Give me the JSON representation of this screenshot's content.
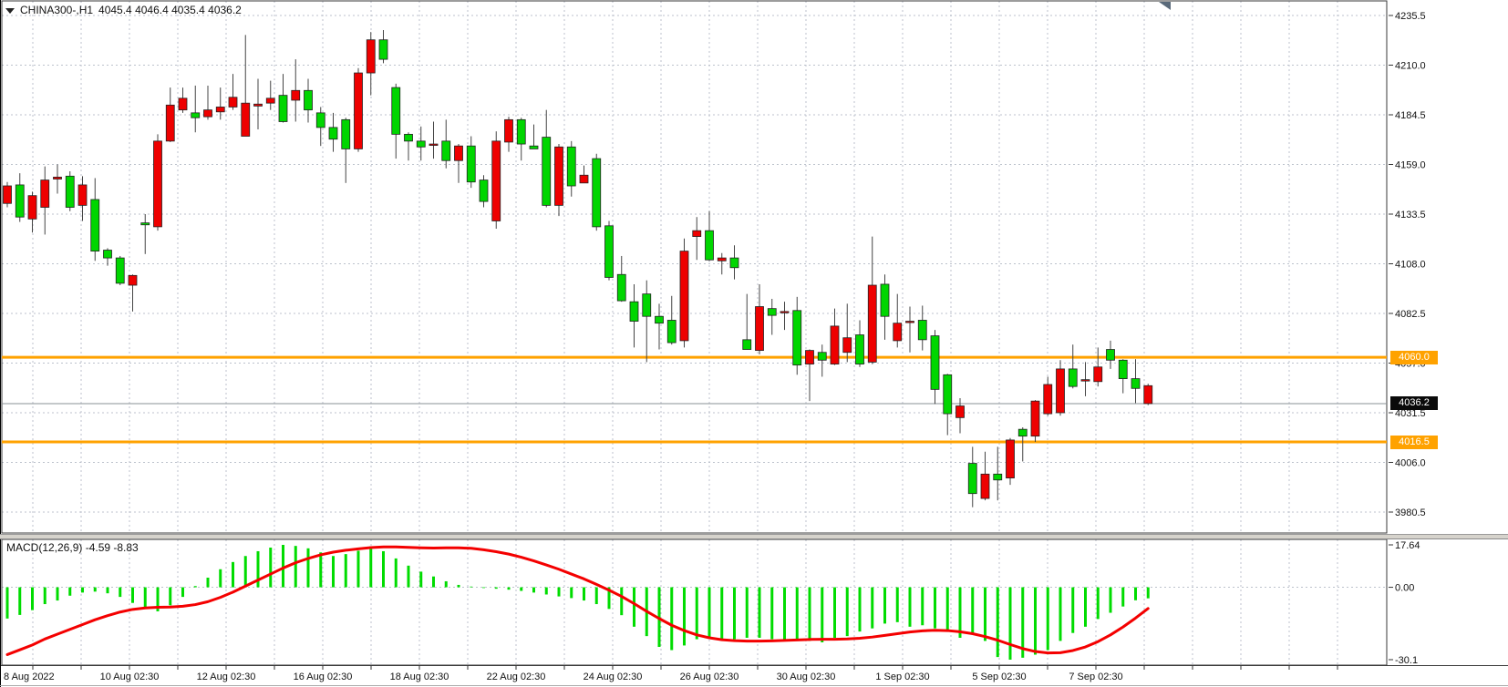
{
  "window": {
    "title_symbol": "CHINA300-,H1",
    "title_values": "4045.4 4046.4 4035.4 4036.2"
  },
  "colors": {
    "bull": "#00d600",
    "bear": "#ee0000",
    "wick": "#444444",
    "grid": "#bcc2cc",
    "border": "#3a3a3a",
    "hline_orange": "#ffa200",
    "price_line_gray": "#8a9096",
    "macd_bar": "#00dc00",
    "macd_signal": "#f40000",
    "badge_black": "#0a0a0a",
    "badge_text": "#ffffff"
  },
  "chart_data": [
    {
      "type": "candlestick",
      "title": "CHINA300-,H1",
      "symbol": "CHINA300-",
      "timeframe": "H1",
      "current_bar": {
        "open": 4045.4,
        "high": 4046.4,
        "low": 4035.4,
        "close": 4036.2
      },
      "legend_position": "top-left",
      "grid": true,
      "y_axis": {
        "side": "right",
        "ticks": [
          "4235.5",
          "4210.0",
          "4184.5",
          "4159.0",
          "4133.5",
          "4108.0",
          "4082.5",
          "4057.0",
          "4031.5",
          "4006.0",
          "3980.5"
        ],
        "max": 4235.5,
        "min": 3980.5
      },
      "x_axis": {
        "labels": [
          "8 Aug 2022",
          "10 Aug 02:30",
          "12 Aug 02:30",
          "16 Aug 02:30",
          "18 Aug 02:30",
          "22 Aug 02:30",
          "24 Aug 02:30",
          "26 Aug 02:30",
          "30 Aug 02:30",
          "1 Sep 02:30",
          "5 Sep 02:30",
          "7 Sep 02:30"
        ]
      },
      "horizontal_lines": [
        {
          "price": 4060.0,
          "label": "4060.0",
          "color": "#ffa200"
        },
        {
          "price": 4016.5,
          "label": "4016.5",
          "color": "#ffa200"
        }
      ],
      "current_price_line": {
        "price": 4036.2,
        "label": "4036.2"
      },
      "candles_ohlc": [
        [
          4148.0,
          4150.0,
          4137.0,
          4139.0
        ],
        [
          4132.0,
          4154.5,
          4129.5,
          4148.5
        ],
        [
          4143.0,
          4145.0,
          4124.0,
          4131.0
        ],
        [
          4151.0,
          4158.0,
          4123.0,
          4137.0
        ],
        [
          4152.5,
          4159.0,
          4144.0,
          4151.5
        ],
        [
          4137.0,
          4155.5,
          4135.0,
          4153.0
        ],
        [
          4148.5,
          4153.0,
          4130.0,
          4138.0
        ],
        [
          4114.5,
          4152.0,
          4109.5,
          4141.0
        ],
        [
          4111.0,
          4116.0,
          4107.0,
          4115.0
        ],
        [
          4098.0,
          4112.0,
          4097.0,
          4111.0
        ],
        [
          4102.0,
          4102.5,
          4083.5,
          4097.0
        ],
        [
          4128.0,
          4133.5,
          4113.0,
          4129.0
        ],
        [
          4171.0,
          4174.5,
          4125.0,
          4127.0
        ],
        [
          4189.5,
          4198.5,
          4170.5,
          4171.0
        ],
        [
          4193.0,
          4198.5,
          4185.5,
          4187.0
        ],
        [
          4183.0,
          4199.5,
          4175.5,
          4185.5
        ],
        [
          4187.0,
          4199.5,
          4182.0,
          4183.5
        ],
        [
          4188.5,
          4198.5,
          4182.0,
          4186.0
        ],
        [
          4193.5,
          4205.5,
          4187.0,
          4188.5
        ],
        [
          4190.5,
          4225.5,
          4173.5,
          4173.5
        ],
        [
          4190.0,
          4203.0,
          4177.0,
          4189.0
        ],
        [
          4193.0,
          4202.0,
          4187.0,
          4190.5
        ],
        [
          4181.0,
          4205.5,
          4180.5,
          4194.5
        ],
        [
          4197.0,
          4213.0,
          4181.0,
          4192.0
        ],
        [
          4187.0,
          4203.0,
          4180.5,
          4197.0
        ],
        [
          4178.0,
          4188.5,
          4168.5,
          4185.5
        ],
        [
          4172.0,
          4185.5,
          4165.5,
          4178.0
        ],
        [
          4167.0,
          4183.0,
          4149.5,
          4182.0
        ],
        [
          4206.0,
          4208.5,
          4165.5,
          4167.0
        ],
        [
          4223.0,
          4227.0,
          4194.5,
          4206.0
        ],
        [
          4213.0,
          4228.0,
          4211.0,
          4223.0
        ],
        [
          4174.5,
          4200.5,
          4162.0,
          4198.5
        ],
        [
          4171.0,
          4175.5,
          4161.0,
          4174.5
        ],
        [
          4168.0,
          4178.5,
          4161.0,
          4171.0
        ],
        [
          4169.5,
          4181.0,
          4162.0,
          4169.0
        ],
        [
          4161.0,
          4182.0,
          4157.0,
          4171.0
        ],
        [
          4168.5,
          4169.5,
          4149.5,
          4161.0
        ],
        [
          4150.0,
          4173.5,
          4147.0,
          4168.5
        ],
        [
          4140.0,
          4153.5,
          4137.0,
          4151.0
        ],
        [
          4171.0,
          4176.0,
          4126.0,
          4130.0
        ],
        [
          4182.0,
          4183.5,
          4165.5,
          4170.5
        ],
        [
          4169.5,
          4183.0,
          4161.0,
          4182.0
        ],
        [
          4167.0,
          4179.5,
          4167.0,
          4168.5
        ],
        [
          4138.0,
          4187.0,
          4137.0,
          4173.0
        ],
        [
          4168.0,
          4169.5,
          4132.5,
          4138.0
        ],
        [
          4148.0,
          4171.0,
          4142.5,
          4168.0
        ],
        [
          4153.5,
          4158.5,
          4149.5,
          4149.5
        ],
        [
          4127.0,
          4164.5,
          4125.0,
          4162.0
        ],
        [
          4101.0,
          4130.0,
          4099.5,
          4127.5
        ],
        [
          4089.0,
          4112.0,
          4088.5,
          4102.5
        ],
        [
          4078.5,
          4097.5,
          4065.0,
          4088.5
        ],
        [
          4081.0,
          4099.5,
          4057.5,
          4092.5
        ],
        [
          4077.5,
          4087.5,
          4064.0,
          4081.0
        ],
        [
          4067.5,
          4091.5,
          4066.5,
          4079.0
        ],
        [
          4114.5,
          4121.0,
          4065.0,
          4068.5
        ],
        [
          4125.0,
          4132.0,
          4110.0,
          4122.0
        ],
        [
          4110.0,
          4135.0,
          4109.5,
          4125.0
        ],
        [
          4111.0,
          4113.5,
          4102.5,
          4109.5
        ],
        [
          4106.0,
          4117.5,
          4100.0,
          4111.0
        ],
        [
          4064.0,
          4092.5,
          4064.0,
          4069.0
        ],
        [
          4086.0,
          4097.5,
          4061.5,
          4063.5
        ],
        [
          4081.5,
          4090.0,
          4071.5,
          4085.0
        ],
        [
          4083.5,
          4088.5,
          4074.0,
          4083.0
        ],
        [
          4056.0,
          4091.0,
          4051.0,
          4084.0
        ],
        [
          4063.5,
          4064.0,
          4037.5,
          4056.5
        ],
        [
          4058.5,
          4066.5,
          4050.0,
          4062.5
        ],
        [
          4076.0,
          4085.0,
          4056.0,
          4056.5
        ],
        [
          4070.0,
          4087.5,
          4057.5,
          4062.5
        ],
        [
          4056.5,
          4079.0,
          4055.0,
          4071.5
        ],
        [
          4097.0,
          4122.0,
          4056.5,
          4057.5
        ],
        [
          4081.0,
          4102.5,
          4069.0,
          4097.5
        ],
        [
          4077.5,
          4092.5,
          4065.0,
          4068.5
        ],
        [
          4078.5,
          4086.0,
          4062.5,
          4078.0
        ],
        [
          4069.0,
          4086.5,
          4063.5,
          4079.0
        ],
        [
          4043.5,
          4074.0,
          4036.0,
          4071.0
        ],
        [
          4031.0,
          4051.5,
          4020.0,
          4051.0
        ],
        [
          4035.0,
          4039.0,
          4021.0,
          4029.0
        ],
        [
          3990.0,
          4014.0,
          3983.0,
          4005.5
        ],
        [
          4000.0,
          4011.5,
          3986.5,
          3987.5
        ],
        [
          3997.0,
          4014.0,
          3986.5,
          4000.0
        ],
        [
          4017.5,
          4018.5,
          3994.5,
          3998.0
        ],
        [
          4019.5,
          4024.0,
          4006.5,
          4023.0
        ],
        [
          4037.5,
          4038.0,
          4016.5,
          4019.5
        ],
        [
          4046.0,
          4050.0,
          4030.0,
          4031.0
        ],
        [
          4054.0,
          4058.5,
          4030.0,
          4031.5
        ],
        [
          4045.0,
          4066.5,
          4044.0,
          4054.0
        ],
        [
          4048.5,
          4057.5,
          4040.0,
          4048.0
        ],
        [
          4055.0,
          4065.0,
          4045.0,
          4047.5
        ],
        [
          4058.5,
          4068.5,
          4054.0,
          4064.0
        ],
        [
          4049.0,
          4059.0,
          4041.5,
          4058.5
        ],
        [
          4044.0,
          4059.0,
          4036.5,
          4049.0
        ],
        [
          4045.4,
          4046.4,
          4035.4,
          4036.2
        ]
      ]
    },
    {
      "type": "bar",
      "title": "MACD(12,26,9)",
      "label_text": "MACD(12,26,9) -4.59 -8.83",
      "values_shown": {
        "macd": -4.59,
        "signal": -8.83
      },
      "y_axis": {
        "side": "right",
        "ticks": [
          "17.64",
          "0.00",
          "-30.1"
        ],
        "max": 17.64,
        "min": -30.1
      },
      "histogram": [
        -13.0,
        -11.5,
        -9.5,
        -7.0,
        -5.5,
        -3.5,
        -2.2,
        -1.8,
        -2.5,
        -4.0,
        -6.5,
        -8.5,
        -10.0,
        -7.5,
        -4.0,
        0.5,
        4.0,
        7.5,
        10.5,
        13.0,
        15.0,
        16.5,
        17.64,
        17.2,
        16.2,
        14.5,
        13.0,
        13.8,
        15.2,
        17.0,
        15.0,
        12.0,
        9.0,
        6.5,
        4.5,
        2.5,
        1.0,
        0.3,
        -0.3,
        -0.6,
        -1.0,
        -1.5,
        -2.2,
        -3.0,
        -3.8,
        -4.5,
        -5.5,
        -7.0,
        -9.0,
        -11.6,
        -16.4,
        -20.3,
        -24.8,
        -26.1,
        -24.2,
        -21.6,
        -21.0,
        -22.3,
        -21.6,
        -21.0,
        -21.0,
        -21.6,
        -22.3,
        -21.6,
        -22.3,
        -22.9,
        -21.0,
        -20.3,
        -18.4,
        -17.1,
        -15.1,
        -14.5,
        -16.4,
        -15.8,
        -17.1,
        -18.4,
        -21.0,
        -19.0,
        -22.3,
        -29.0,
        -30.1,
        -29.3,
        -28.0,
        -26.1,
        -22.3,
        -19.0,
        -16.4,
        -13.2,
        -10.6,
        -8.0,
        -5.4,
        -4.59
      ],
      "signal_line": [
        -28.0,
        -26.0,
        -24.0,
        -21.5,
        -19.5,
        -17.5,
        -15.5,
        -13.5,
        -11.8,
        -10.3,
        -9.2,
        -8.6,
        -8.3,
        -8.2,
        -7.9,
        -7.2,
        -6.0,
        -4.2,
        -2.0,
        0.5,
        3.0,
        5.5,
        8.0,
        10.2,
        12.0,
        13.5,
        14.6,
        15.4,
        16.0,
        16.5,
        16.8,
        16.8,
        16.6,
        16.4,
        16.3,
        16.4,
        16.4,
        16.2,
        15.6,
        14.8,
        13.8,
        12.5,
        11.0,
        9.3,
        7.5,
        5.5,
        3.5,
        1.2,
        -1.2,
        -3.8,
        -6.8,
        -10.0,
        -13.0,
        -15.8,
        -18.0,
        -19.8,
        -21.0,
        -21.8,
        -22.2,
        -22.4,
        -22.4,
        -22.3,
        -22.1,
        -21.9,
        -21.7,
        -21.6,
        -21.6,
        -21.5,
        -21.2,
        -20.7,
        -20.0,
        -19.3,
        -18.6,
        -18.1,
        -17.9,
        -18.0,
        -18.5,
        -19.3,
        -20.5,
        -22.0,
        -23.8,
        -25.5,
        -26.7,
        -27.3,
        -27.2,
        -26.3,
        -24.8,
        -22.6,
        -19.8,
        -16.5,
        -12.8,
        -8.83
      ]
    }
  ],
  "axis_badges": {
    "resistance": "4060.0",
    "support": "4016.5",
    "current_price": "4036.2"
  }
}
